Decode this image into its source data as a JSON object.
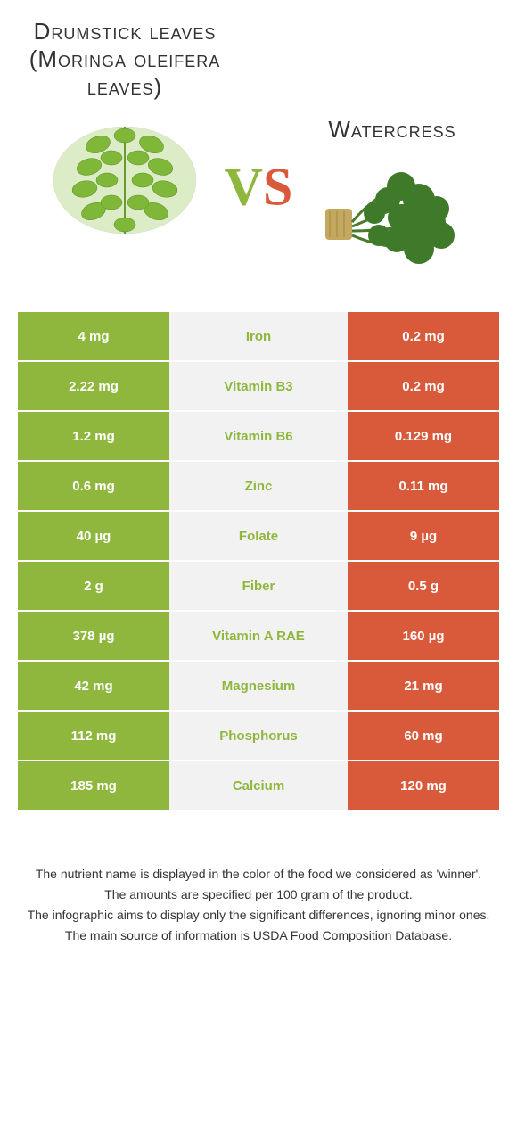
{
  "left_food": {
    "title": "Drumstick leaves (Moringa oleifera leaves)"
  },
  "right_food": {
    "title": "Watercress"
  },
  "vs": {
    "v": "V",
    "s": "S"
  },
  "colors": {
    "left_bg": "#8fb73e",
    "right_bg": "#d85a3a",
    "mid_bg": "#f2f2f2",
    "winner_left_text": "#8fb73e",
    "winner_right_text": "#d85a3a"
  },
  "rows": [
    {
      "left": "4 mg",
      "nutrient": "Iron",
      "right": "0.2 mg",
      "winner": "left"
    },
    {
      "left": "2.22 mg",
      "nutrient": "Vitamin B3",
      "right": "0.2 mg",
      "winner": "left"
    },
    {
      "left": "1.2 mg",
      "nutrient": "Vitamin B6",
      "right": "0.129 mg",
      "winner": "left"
    },
    {
      "left": "0.6 mg",
      "nutrient": "Zinc",
      "right": "0.11 mg",
      "winner": "left"
    },
    {
      "left": "40 µg",
      "nutrient": "Folate",
      "right": "9 µg",
      "winner": "left"
    },
    {
      "left": "2 g",
      "nutrient": "Fiber",
      "right": "0.5 g",
      "winner": "left"
    },
    {
      "left": "378 µg",
      "nutrient": "Vitamin A RAE",
      "right": "160 µg",
      "winner": "left"
    },
    {
      "left": "42 mg",
      "nutrient": "Magnesium",
      "right": "21 mg",
      "winner": "left"
    },
    {
      "left": "112 mg",
      "nutrient": "Phosphorus",
      "right": "60 mg",
      "winner": "left"
    },
    {
      "left": "185 mg",
      "nutrient": "Calcium",
      "right": "120 mg",
      "winner": "left"
    }
  ],
  "footer": {
    "line1": "The nutrient name is displayed in the color of the food we considered as 'winner'.",
    "line2": "The amounts are specified per 100 gram of the product.",
    "line3": "The infographic aims to display only the significant differences, ignoring minor ones.",
    "line4": "The main source of information is USDA Food Composition Database."
  }
}
